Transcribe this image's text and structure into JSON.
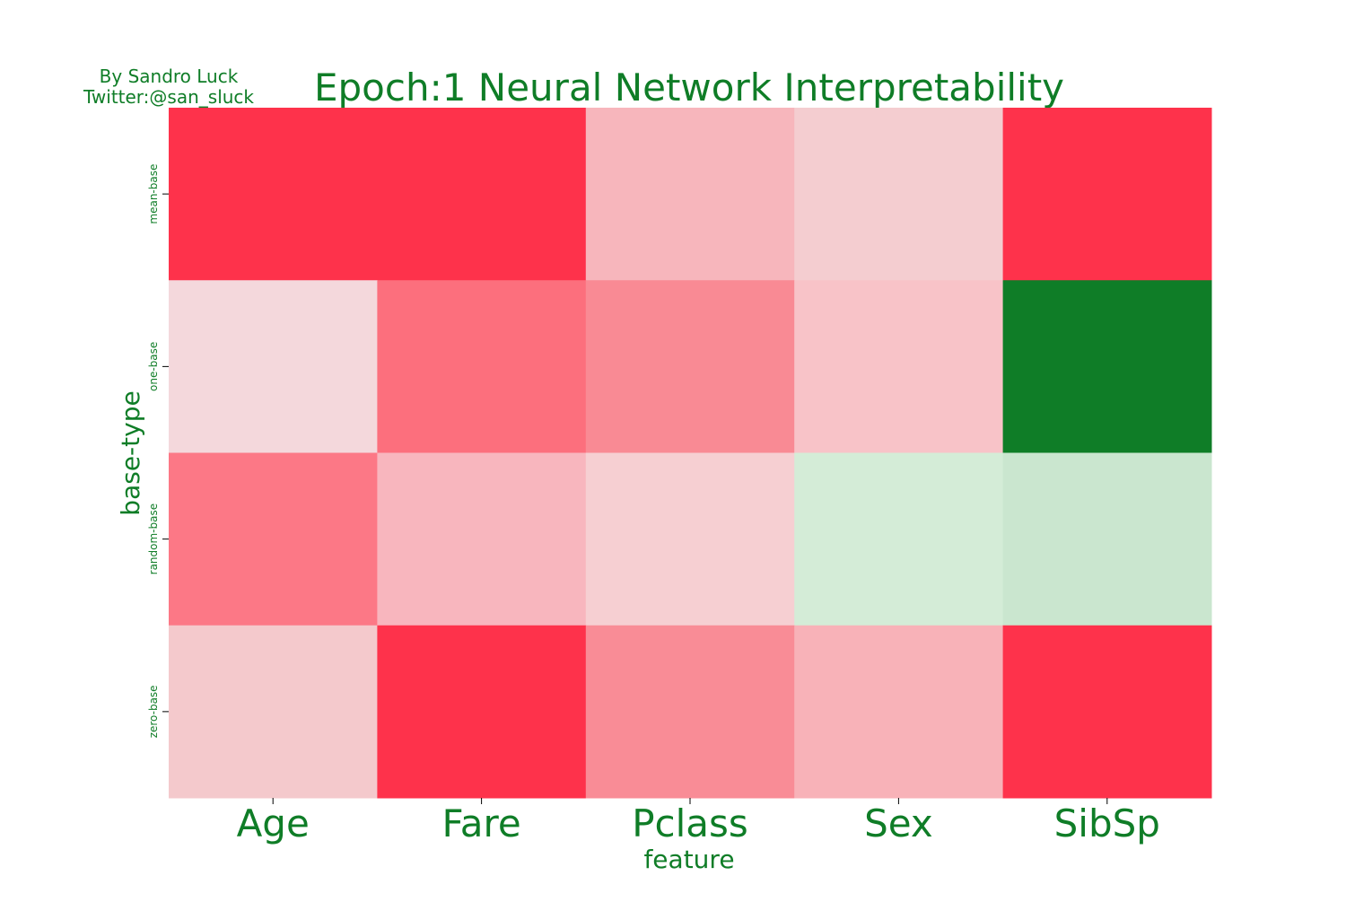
{
  "credit": {
    "line1": "By Sandro Luck",
    "line2": "Twitter:@san_sluck"
  },
  "chart_data": {
    "type": "heatmap",
    "title": "Epoch:1 Neural Network Interpretability",
    "xlabel": "feature",
    "ylabel": "base-type",
    "x_categories": [
      "Age",
      "Fare",
      "Pclass",
      "Sex",
      "SibSp"
    ],
    "y_categories": [
      "mean-base",
      "one-base",
      "random-base",
      "zero-base"
    ],
    "cell_colors": [
      [
        "#fe324b",
        "#fe324b",
        "#f7b6bc",
        "#f4cdd0",
        "#fe324b"
      ],
      [
        "#f4d8dc",
        "#fc6f7d",
        "#f98a94",
        "#f8c3c8",
        "#0f7d27"
      ],
      [
        "#fc7886",
        "#f8b6be",
        "#f6cfd2",
        "#d4ecd7",
        "#cae6cf"
      ],
      [
        "#f4c9cc",
        "#fe324b",
        "#f98c96",
        "#f8b2b8",
        "#fe324b"
      ]
    ],
    "colorscale": {
      "negative": "#fe324b",
      "neutral": "#f4dde0",
      "positive": "#0f7d27"
    },
    "colorbar": false,
    "grid": false,
    "text_color": "#0f7d27"
  }
}
